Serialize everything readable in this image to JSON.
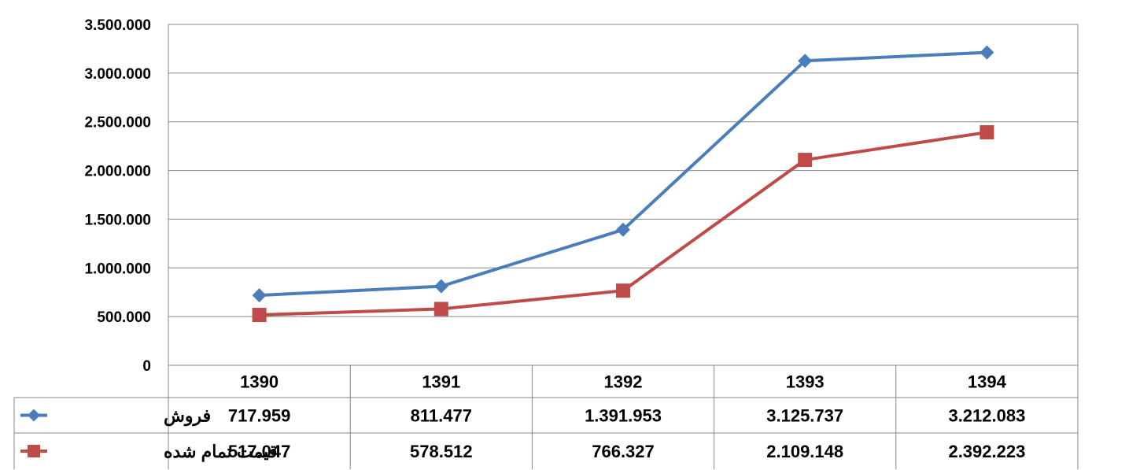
{
  "chart_data": {
    "type": "line",
    "categories": [
      "1390",
      "1391",
      "1392",
      "1393",
      "1394"
    ],
    "series": [
      {
        "name": "فروش",
        "values": [
          717959,
          811477,
          1391953,
          3125737,
          3212083
        ],
        "labels": [
          "717.959",
          "811.477",
          "1.391.953",
          "3.125.737",
          "3.212.083"
        ],
        "color": "#4a7ebb",
        "marker": "diamond"
      },
      {
        "name": "قیمت تمام شده",
        "values": [
          517047,
          578512,
          766327,
          2109148,
          2392223
        ],
        "labels": [
          "517.047",
          "578.512",
          "766.327",
          "2.109.148",
          "2.392.223"
        ],
        "color": "#be4b48",
        "marker": "square"
      }
    ],
    "ylim": [
      0,
      3500000
    ],
    "yticks": [
      {
        "value": 0,
        "label": "0"
      },
      {
        "value": 500000,
        "label": "500.000"
      },
      {
        "value": 1000000,
        "label": "1.000.000"
      },
      {
        "value": 1500000,
        "label": "1.500.000"
      },
      {
        "value": 2000000,
        "label": "2.000.000"
      },
      {
        "value": 2500000,
        "label": "2.500.000"
      },
      {
        "value": 3000000,
        "label": "3.000.000"
      },
      {
        "value": 3500000,
        "label": "3.500.000"
      }
    ],
    "grid": true,
    "legend": "data-table-left",
    "gridColor": "#868686"
  }
}
